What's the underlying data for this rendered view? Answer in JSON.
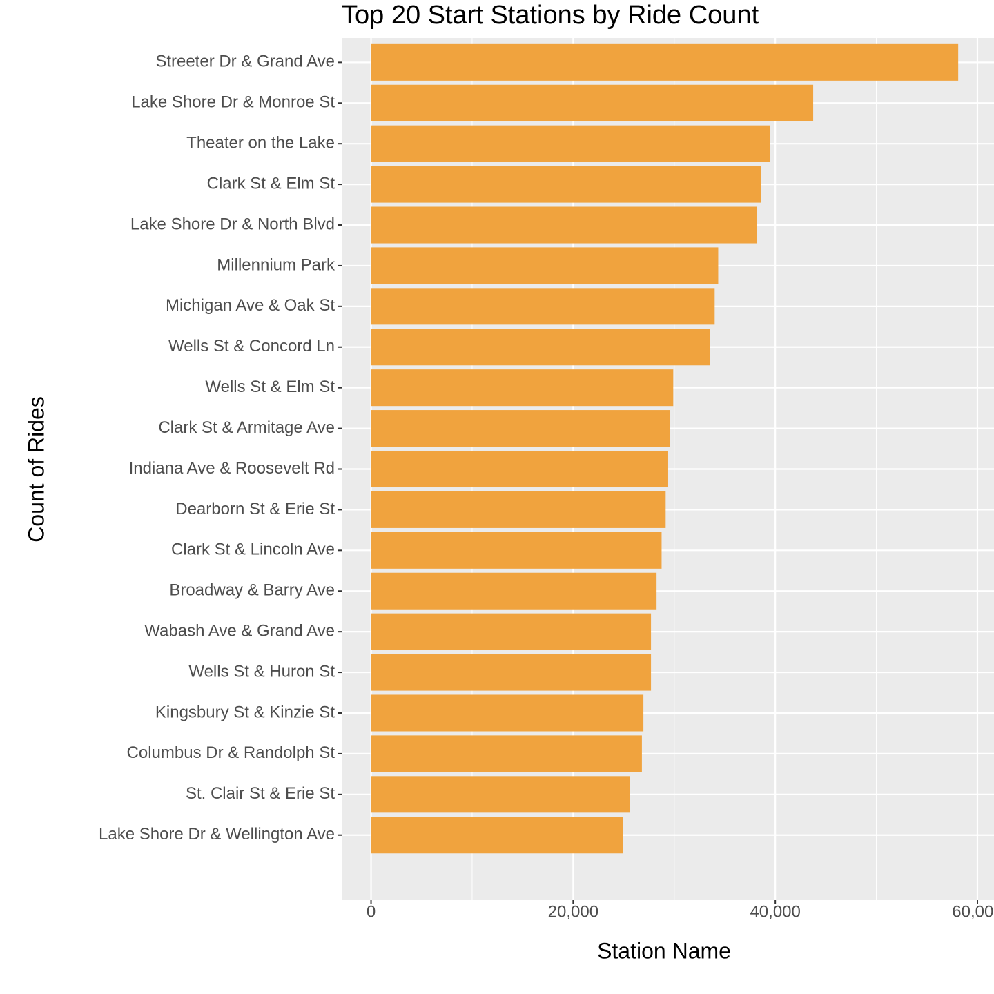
{
  "chart_data": {
    "type": "bar",
    "orientation": "horizontal",
    "title": "Top 20 Start Stations by Ride Count",
    "x_label": "Station Name",
    "y_label": "Count of Rides",
    "categories": [
      "Streeter Dr & Grand Ave",
      "Lake Shore Dr & Monroe St",
      "Theater on the Lake",
      "Clark St & Elm St",
      "Lake Shore Dr & North Blvd",
      "Millennium Park",
      "Michigan Ave & Oak St",
      "Wells St & Concord Ln",
      "Wells St & Elm St",
      "Clark St & Armitage Ave",
      "Indiana Ave & Roosevelt Rd",
      "Dearborn St & Erie St",
      "Clark St & Lincoln Ave",
      "Broadway & Barry Ave",
      "Wabash Ave & Grand Ave",
      "Wells St & Huron St",
      "Kingsbury St & Kinzie St",
      "Columbus Dr & Randolph St",
      "St. Clair St & Erie St",
      "Lake Shore Dr & Wellington Ave"
    ],
    "values": [
      58100,
      43750,
      39500,
      38600,
      38150,
      34350,
      34000,
      33500,
      29900,
      29550,
      29400,
      29150,
      28750,
      28250,
      27700,
      27700,
      26950,
      26800,
      25600,
      24900
    ],
    "color": "#f0a33e",
    "xlim": [
      -2905,
      61005
    ],
    "xticks": [
      0,
      {
        "value": 20000,
        "label": "20,000"
      },
      {
        "value": 40000,
        "label": "40,000"
      },
      {
        "value": 60000,
        "label": "60,000"
      }
    ],
    "grid": true
  }
}
